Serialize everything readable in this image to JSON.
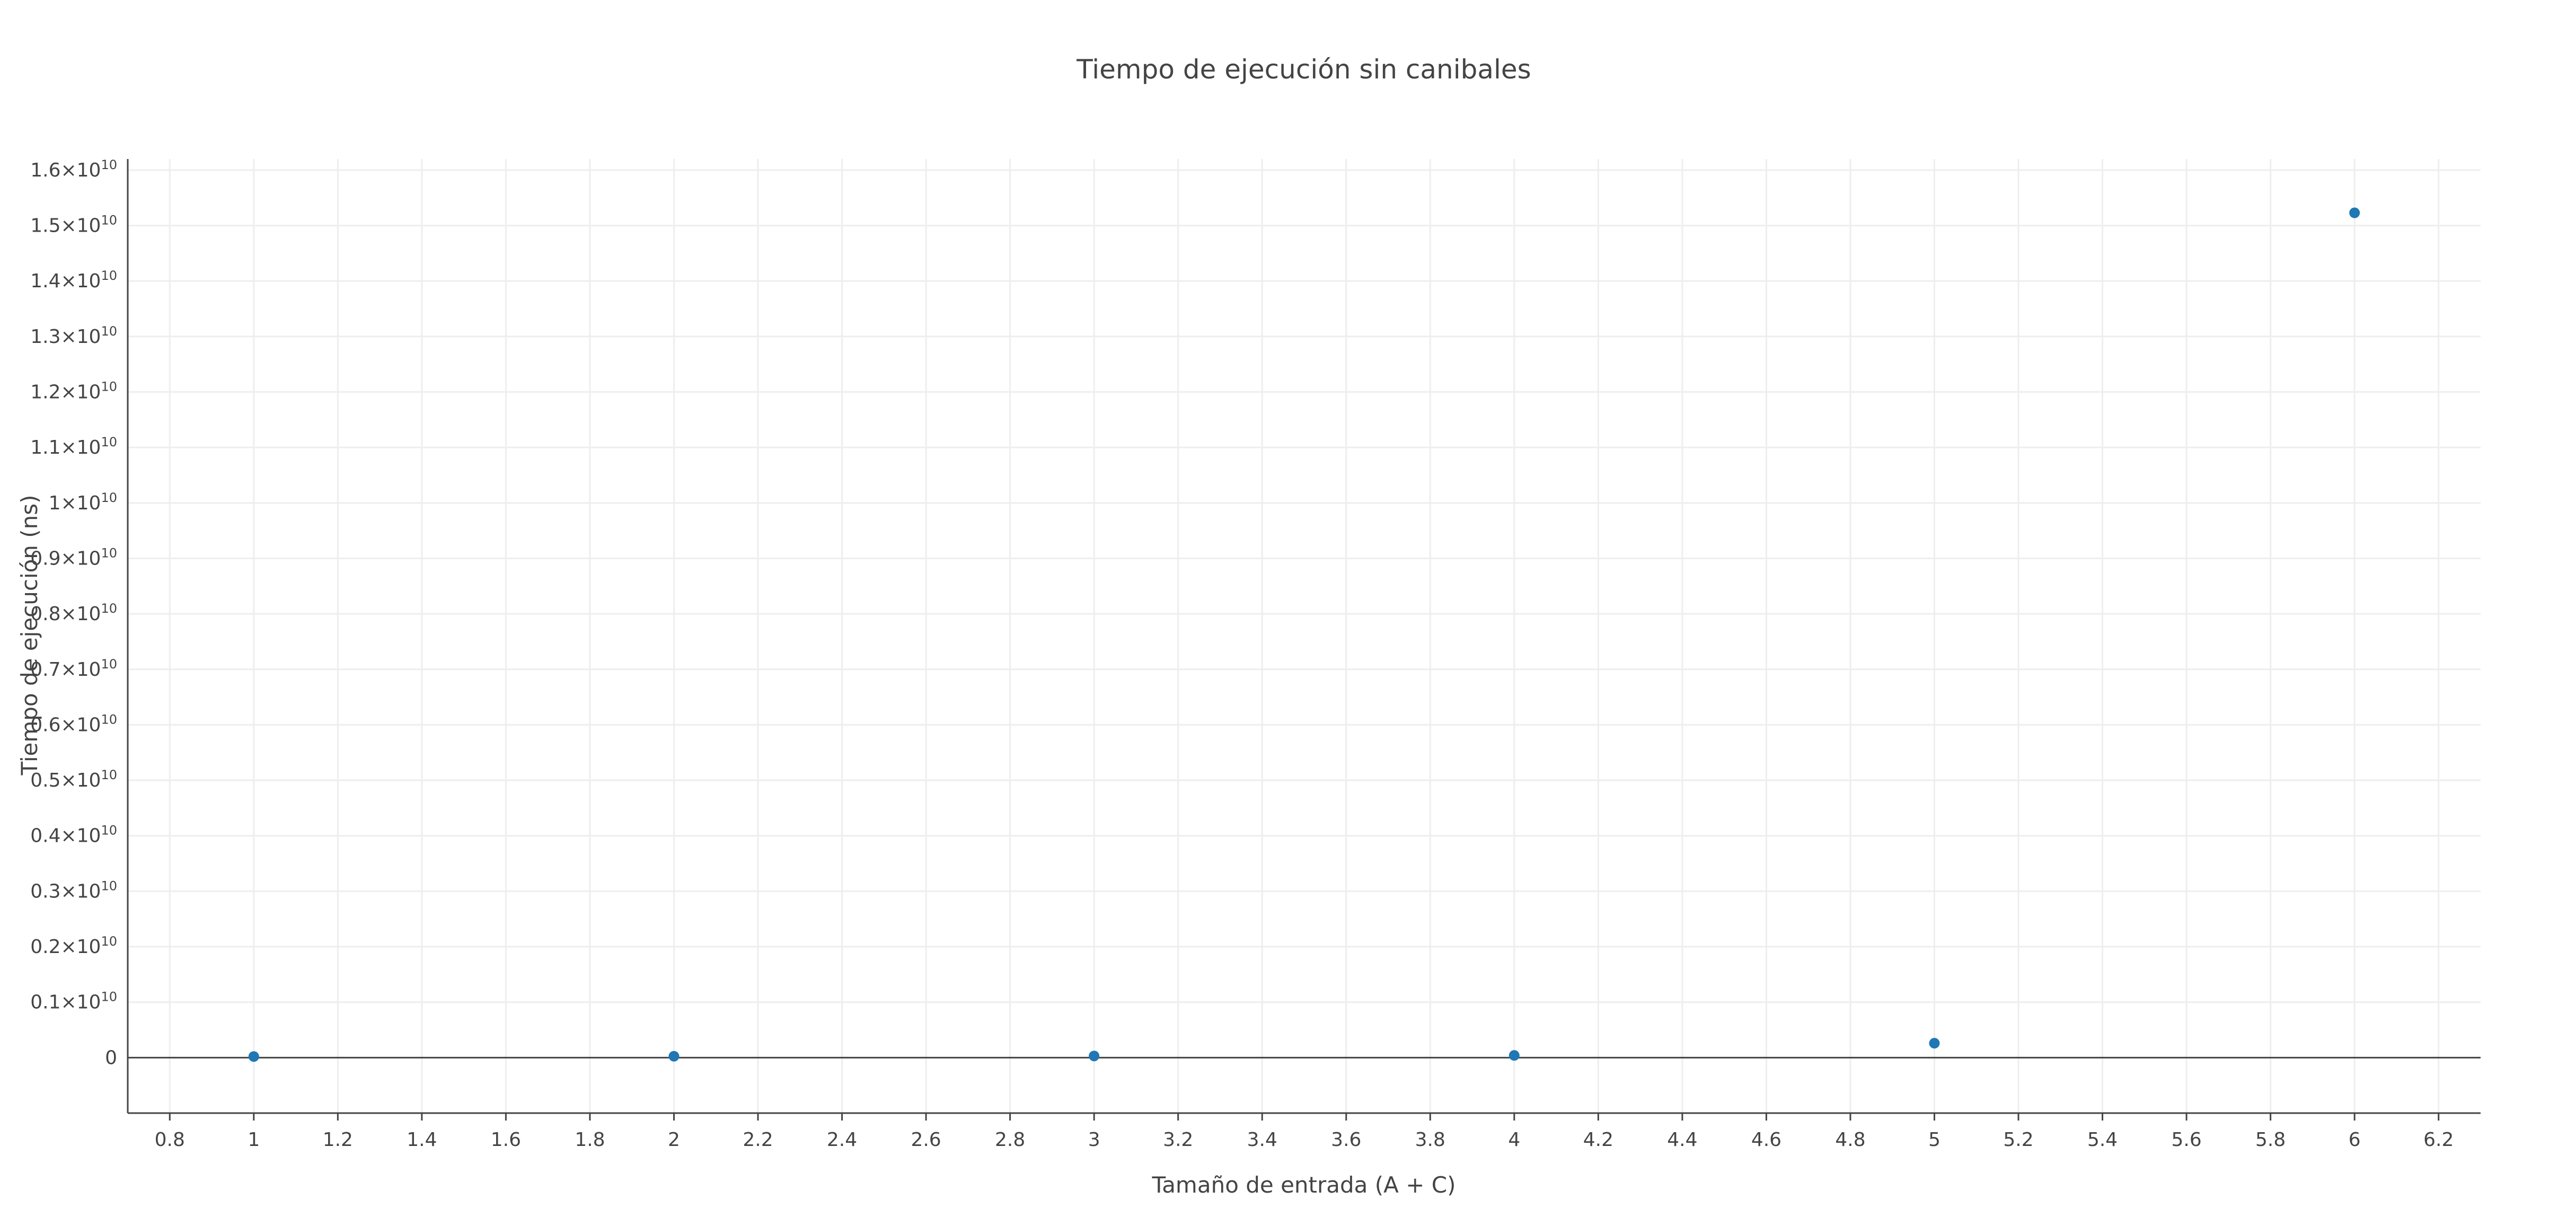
{
  "chart_data": {
    "type": "scatter",
    "title": "Tiempo de ejecución sin canibales",
    "xlabel": "Tamaño de entrada (A + C)",
    "ylabel": "Tiempo de ejecución (ns)",
    "xlim": [
      0.7,
      6.3
    ],
    "ylim": [
      -1000000000.0,
      16200000000.0
    ],
    "x_ticks": [
      0.8,
      1,
      1.2,
      1.4,
      1.6,
      1.8,
      2,
      2.2,
      2.4,
      2.6,
      2.8,
      3,
      3.2,
      3.4,
      3.6,
      3.8,
      4,
      4.2,
      4.4,
      4.6,
      4.8,
      5,
      5.2,
      5.4,
      5.6,
      5.8,
      6,
      6.2
    ],
    "x_tick_labels": [
      "0.8",
      "1",
      "1.2",
      "1.4",
      "1.6",
      "1.8",
      "2",
      "2.2",
      "2.4",
      "2.6",
      "2.8",
      "3",
      "3.2",
      "3.4",
      "3.6",
      "3.8",
      "4",
      "4.2",
      "4.4",
      "4.6",
      "4.8",
      "5",
      "5.2",
      "5.4",
      "5.6",
      "5.8",
      "6",
      "6.2"
    ],
    "y_ticks": [
      0,
      1000000000.0,
      2000000000.0,
      3000000000.0,
      4000000000.0,
      5000000000.0,
      6000000000.0,
      7000000000.0,
      8000000000.0,
      9000000000.0,
      10000000000.0,
      11000000000.0,
      12000000000.0,
      13000000000.0,
      14000000000.0,
      15000000000.0,
      16000000000.0
    ],
    "y_tick_labels": [
      {
        "mantissa": "0",
        "exp": ""
      },
      {
        "mantissa": "0.1×10",
        "exp": "10"
      },
      {
        "mantissa": "0.2×10",
        "exp": "10"
      },
      {
        "mantissa": "0.3×10",
        "exp": "10"
      },
      {
        "mantissa": "0.4×10",
        "exp": "10"
      },
      {
        "mantissa": "0.5×10",
        "exp": "10"
      },
      {
        "mantissa": "0.6×10",
        "exp": "10"
      },
      {
        "mantissa": "0.7×10",
        "exp": "10"
      },
      {
        "mantissa": "0.8×10",
        "exp": "10"
      },
      {
        "mantissa": "0.9×10",
        "exp": "10"
      },
      {
        "mantissa": "1×10",
        "exp": "10"
      },
      {
        "mantissa": "1.1×10",
        "exp": "10"
      },
      {
        "mantissa": "1.2×10",
        "exp": "10"
      },
      {
        "mantissa": "1.3×10",
        "exp": "10"
      },
      {
        "mantissa": "1.4×10",
        "exp": "10"
      },
      {
        "mantissa": "1.5×10",
        "exp": "10"
      },
      {
        "mantissa": "1.6×10",
        "exp": "10"
      }
    ],
    "grid": true,
    "legend": "none",
    "series": [
      {
        "color": "#1f77b4",
        "x": [
          1,
          2,
          3,
          4,
          5,
          6
        ],
        "y": [
          20000000,
          25000000,
          30000000,
          40000000,
          260000000,
          15230000000
        ]
      }
    ]
  }
}
